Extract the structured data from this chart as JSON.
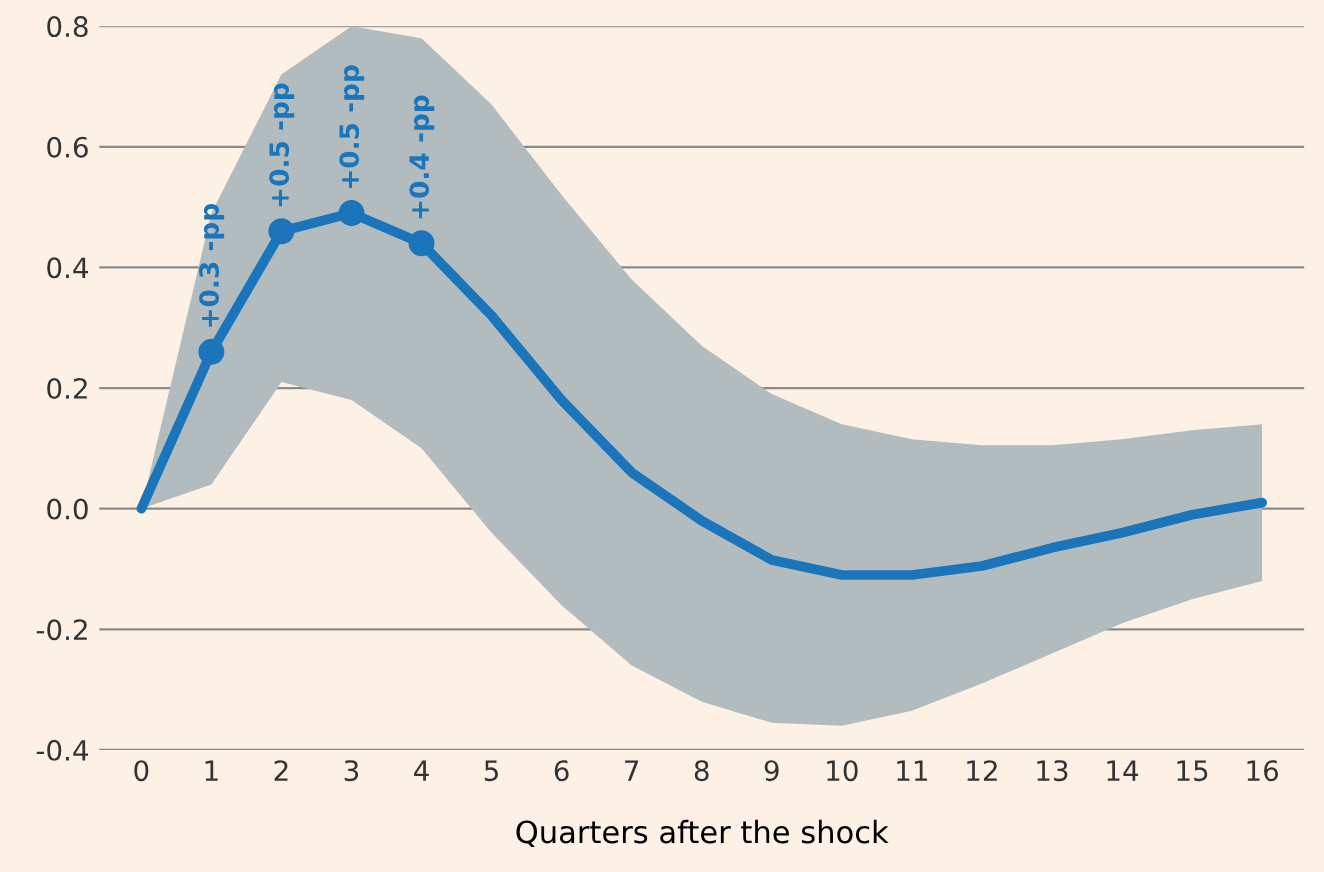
{
  "chart_data": {
    "type": "line",
    "xlabel": "Quarters after the shock",
    "x": [
      0,
      1,
      2,
      3,
      4,
      5,
      6,
      7,
      8,
      9,
      10,
      11,
      12,
      13,
      14,
      15,
      16
    ],
    "series": [
      {
        "color": "#1b75bb",
        "lower": [
          0,
          0.04,
          0.21,
          0.18,
          0.1,
          -0.04,
          -0.16,
          -0.26,
          -0.32,
          -0.355,
          -0.36,
          -0.335,
          -0.29,
          -0.24,
          -0.19,
          -0.15,
          -0.12
        ],
        "upper": [
          0,
          0.49,
          0.72,
          0.8,
          0.78,
          0.67,
          0.52,
          0.38,
          0.27,
          0.19,
          0.14,
          0.115,
          0.105,
          0.105,
          0.115,
          0.13,
          0.14
        ],
        "values": [
          0,
          0.26,
          0.46,
          0.49,
          0.44,
          0.32,
          0.18,
          0.06,
          -0.02,
          -0.085,
          -0.11,
          -0.11,
          -0.095,
          -0.065,
          -0.04,
          -0.01,
          0.01
        ]
      },
      {
        "type": "scatter",
        "color": "#1b75bb",
        "marker": "circle",
        "x": [
          1,
          2,
          3,
          4
        ],
        "values": [
          0.26,
          0.46,
          0.49,
          0.44
        ]
      }
    ],
    "annotations": [
      {
        "text": "+0.3 -pp",
        "x": 1,
        "y": 0.26
      },
      {
        "text": "+0.5 -pp",
        "x": 2,
        "y": 0.46
      },
      {
        "text": "+0.5 -pp",
        "x": 3,
        "y": 0.49
      },
      {
        "text": "+0.4 -pp",
        "x": 4,
        "y": 0.44
      }
    ],
    "xlim": [
      -0.6,
      16.6
    ],
    "xticks": [
      0,
      1,
      2,
      3,
      4,
      5,
      6,
      7,
      8,
      9,
      10,
      11,
      12,
      13,
      14,
      15,
      16
    ],
    "ylim": [
      -0.4,
      0.8
    ],
    "yticks": [
      {
        "value": -0.4,
        "label": "-0.4"
      },
      {
        "value": -0.2,
        "label": "-0.2"
      },
      {
        "value": 0,
        "label": "0.0"
      },
      {
        "value": 0.2,
        "label": "0.2"
      },
      {
        "value": 0.4,
        "label": "0.4"
      },
      {
        "value": 0.6,
        "label": "0.6"
      },
      {
        "value": 0.8,
        "label": "0.8"
      }
    ],
    "grid": "y",
    "legend": false
  }
}
